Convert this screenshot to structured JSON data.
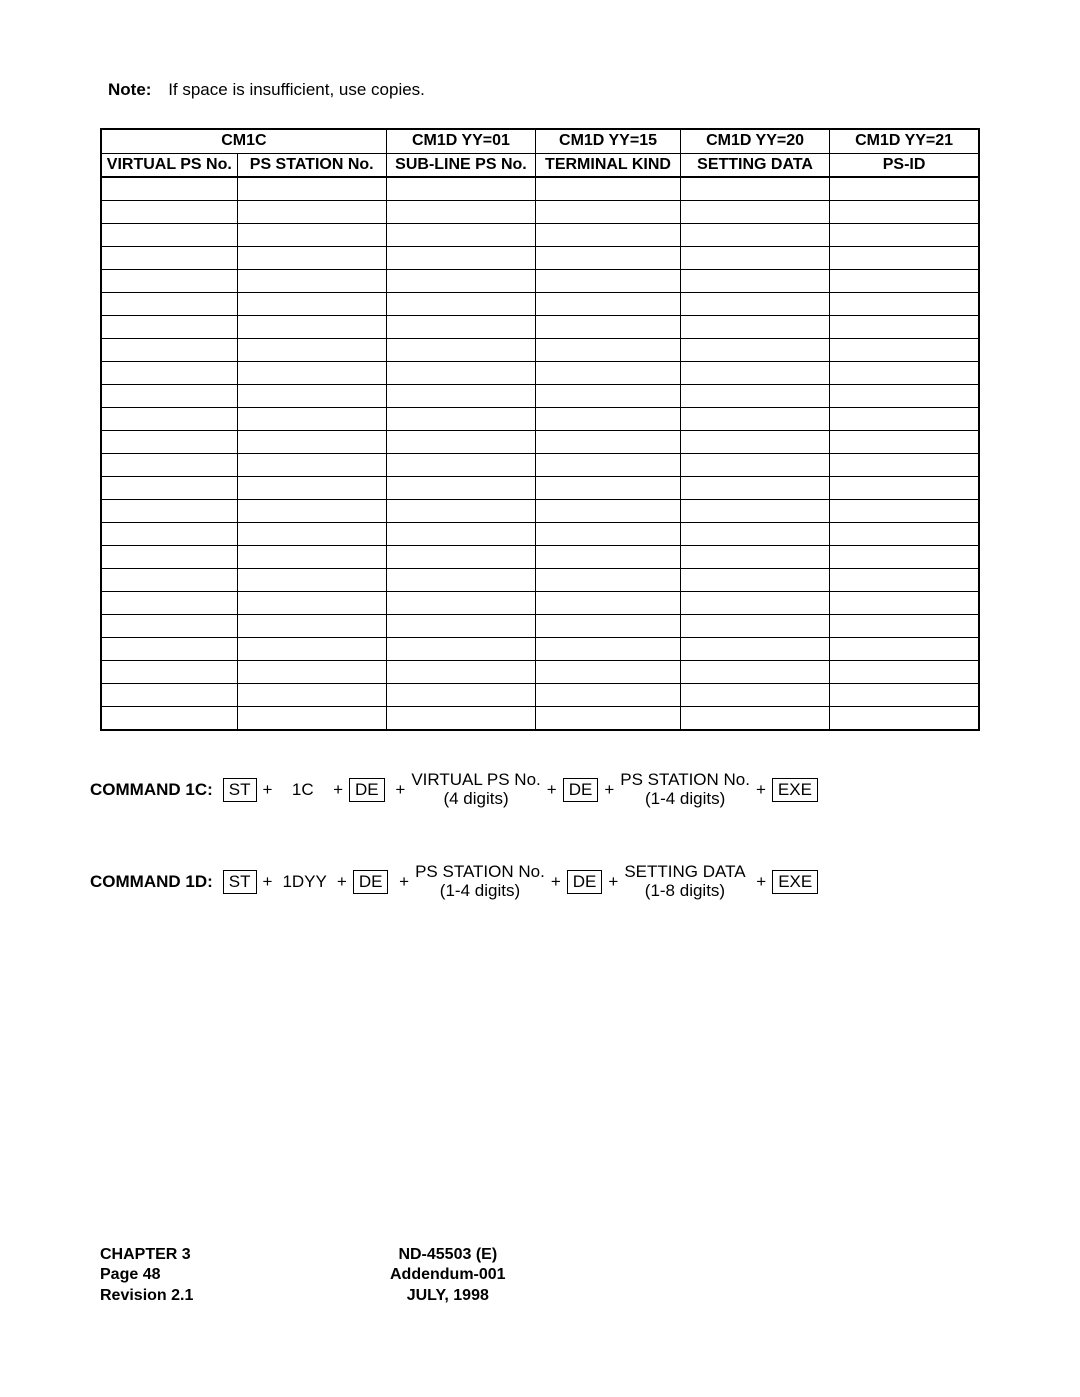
{
  "note": {
    "label": "Note:",
    "text": "If space is insufficient, use copies."
  },
  "table": {
    "header1": [
      "CM1C",
      "CM1D YY=01",
      "CM1D YY=15",
      "CM1D YY=20",
      "CM1D YY=21"
    ],
    "header2": [
      "VIRTUAL PS No.",
      "PS STATION No.",
      "SUB-LINE PS No.",
      "TERMINAL KIND",
      "SETTING DATA",
      "PS-ID"
    ],
    "blank_rows": 24,
    "col_count": 6
  },
  "command1c": {
    "label": "COMMAND 1C:",
    "k1": "ST",
    "t1": "1C",
    "k2": "DE",
    "arg1_top": "VIRTUAL PS No.",
    "arg1_bot": "(4 digits)",
    "k3": "DE",
    "arg2_top": "PS STATION No.",
    "arg2_bot": "(1-4 digits)",
    "k4": "EXE"
  },
  "command1d": {
    "label": "COMMAND 1D:",
    "k1": "ST",
    "t1": "1DYY",
    "k2": "DE",
    "arg1_top": "PS STATION No.",
    "arg1_bot": "(1-4 digits)",
    "k3": "DE",
    "arg2_top": "SETTING DATA",
    "arg2_bot": "(1-8 digits)",
    "k4": "EXE"
  },
  "footer": {
    "left1": "CHAPTER 3",
    "left2": "Page 48",
    "left3": "Revision 2.1",
    "center1": "ND-45503 (E)",
    "center2": "Addendum-001",
    "center3": "JULY, 1998"
  }
}
